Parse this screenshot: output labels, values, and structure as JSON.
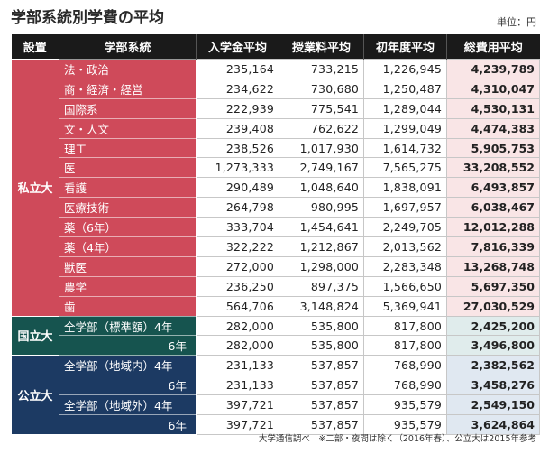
{
  "title": "学部系統別学費の平均",
  "unit": "単位：円",
  "headers": [
    "設置",
    "学部系統",
    "入学金平均",
    "授業料平均",
    "初年度平均",
    "総費用平均"
  ],
  "groups": [
    {
      "setting": "私立大",
      "theme": "private",
      "rows": [
        {
          "faculty": "法・政治",
          "admission": "235,164",
          "tuition": "733,215",
          "first_year": "1,226,945",
          "total": "4,239,789"
        },
        {
          "faculty": "商・経済・経営",
          "admission": "234,622",
          "tuition": "730,680",
          "first_year": "1,250,487",
          "total": "4,310,047"
        },
        {
          "faculty": "国際系",
          "admission": "222,939",
          "tuition": "775,541",
          "first_year": "1,289,044",
          "total": "4,530,131"
        },
        {
          "faculty": "文・人文",
          "admission": "239,408",
          "tuition": "762,622",
          "first_year": "1,299,049",
          "total": "4,474,383"
        },
        {
          "faculty": "理工",
          "admission": "238,526",
          "tuition": "1,017,930",
          "first_year": "1,614,732",
          "total": "5,905,753"
        },
        {
          "faculty": "医",
          "admission": "1,273,333",
          "tuition": "2,749,167",
          "first_year": "7,565,275",
          "total": "33,208,552"
        },
        {
          "faculty": "看護",
          "admission": "290,489",
          "tuition": "1,048,640",
          "first_year": "1,838,091",
          "total": "6,493,857"
        },
        {
          "faculty": "医療技術",
          "admission": "264,798",
          "tuition": "980,995",
          "first_year": "1,697,957",
          "total": "6,038,467"
        },
        {
          "faculty": "薬（6年）",
          "admission": "333,704",
          "tuition": "1,454,641",
          "first_year": "2,249,705",
          "total": "12,012,288"
        },
        {
          "faculty": "薬（4年）",
          "admission": "322,222",
          "tuition": "1,212,867",
          "first_year": "2,013,562",
          "total": "7,816,339"
        },
        {
          "faculty": "獣医",
          "admission": "272,000",
          "tuition": "1,298,000",
          "first_year": "2,283,348",
          "total": "13,268,748"
        },
        {
          "faculty": "農学",
          "admission": "236,250",
          "tuition": "897,375",
          "first_year": "1,566,650",
          "total": "5,697,350"
        },
        {
          "faculty": "歯",
          "admission": "564,706",
          "tuition": "3,148,824",
          "first_year": "5,369,941",
          "total": "27,030,529"
        }
      ]
    },
    {
      "setting": "国立大",
      "theme": "national",
      "rows": [
        {
          "faculty": "全学部（標準額）4年",
          "admission": "282,000",
          "tuition": "535,800",
          "first_year": "817,800",
          "total": "2,425,200"
        },
        {
          "faculty": "6年",
          "sub": true,
          "admission": "282,000",
          "tuition": "535,800",
          "first_year": "817,800",
          "total": "3,496,800"
        }
      ]
    },
    {
      "setting": "公立大",
      "theme": "public",
      "rows": [
        {
          "faculty": "全学部（地域内）4年",
          "admission": "231,133",
          "tuition": "537,857",
          "first_year": "768,990",
          "total": "2,382,562"
        },
        {
          "faculty": "6年",
          "sub": true,
          "admission": "231,133",
          "tuition": "537,857",
          "first_year": "768,990",
          "total": "3,458,276"
        },
        {
          "faculty": "全学部（地域外）4年",
          "admission": "397,721",
          "tuition": "537,857",
          "first_year": "935,579",
          "total": "2,549,150"
        },
        {
          "faculty": "6年",
          "sub": true,
          "admission": "397,721",
          "tuition": "537,857",
          "first_year": "935,579",
          "total": "3,624,864"
        }
      ]
    }
  ],
  "footnote": "大学通信調べ　※二部・夜間は除く（2016年春）、公立大は2015年参考"
}
